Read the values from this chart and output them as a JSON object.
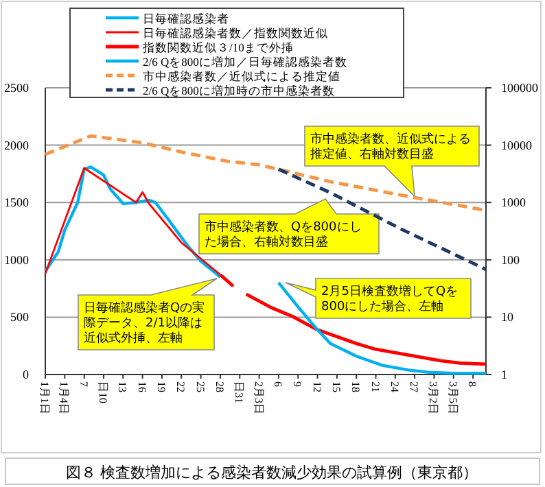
{
  "chart_data": {
    "type": "line",
    "title": "図８ 検査数増加による感染者数減少効果の試算例（東京都）",
    "annotations": [
      "市中感染者数、近似式による推定値、右軸対数目盛",
      "市中感染者数、Qを800にした場合、右軸対数目盛",
      "2月5日検査数増してQを800にした場合、左軸",
      "日毎確認感染者Qの実際データ、2/1以降は近似式外挿、左軸"
    ],
    "xlim": [
      "--01-01",
      "--03-10"
    ],
    "xticks": [
      {
        "value": "--01-01",
        "label": "1月1日"
      },
      {
        "value": "--01-04",
        "label": "1月4日"
      },
      {
        "value": "--01-07",
        "label": "7"
      },
      {
        "value": "--01-10",
        "label": "日10"
      },
      {
        "value": "--01-13",
        "label": "13"
      },
      {
        "value": "--01-16",
        "label": "16"
      },
      {
        "value": "--01-19",
        "label": "19"
      },
      {
        "value": "--01-22",
        "label": "22"
      },
      {
        "value": "--01-25",
        "label": "25"
      },
      {
        "value": "--01-28",
        "label": "28"
      },
      {
        "value": "--01-31",
        "label": "日31"
      },
      {
        "value": "--02-03",
        "label": "2月3日"
      },
      {
        "value": "--02-06",
        "label": "6"
      },
      {
        "value": "--02-09",
        "label": "9"
      },
      {
        "value": "--02-12",
        "label": "12"
      },
      {
        "value": "--02-15",
        "label": "15"
      },
      {
        "value": "--02-18",
        "label": "18"
      },
      {
        "value": "--02-21",
        "label": "21"
      },
      {
        "value": "--02-24",
        "label": "24"
      },
      {
        "value": "--02-27",
        "label": "27"
      },
      {
        "value": "--03-02",
        "label": "3月2日"
      },
      {
        "value": "--03-05",
        "label": "3月5日"
      },
      {
        "value": "--03-08",
        "label": "8"
      }
    ],
    "ylim": [
      0,
      2500
    ],
    "yticks": [
      0,
      500,
      1000,
      1500,
      2000,
      2500
    ],
    "y2lim": [
      1,
      100000
    ],
    "y2ticks": [
      1,
      10,
      100,
      1000,
      10000,
      100000
    ],
    "log": "y2",
    "grid": "y",
    "legend": "top",
    "series": [
      {
        "name": "日毎確認感染者",
        "color": "#00b0f0",
        "x": [
          "--01-01",
          "--01-03",
          "--01-04",
          "--01-06",
          "--01-07",
          "--01-08",
          "--01-10",
          "--01-11",
          "--01-13",
          "--01-15",
          "--01-17",
          "--01-18",
          "--01-20",
          "--01-23",
          "--01-25",
          "--01-28"
        ],
        "values": [
          900,
          1070,
          1260,
          1500,
          1790,
          1810,
          1740,
          1620,
          1490,
          1500,
          1520,
          1500,
          1350,
          1120,
          990,
          850
        ]
      },
      {
        "name": "日毎確認感染者数／指数関数近似",
        "color": "#ff0000",
        "x": [
          "--01-01",
          "--01-07",
          "--01-15",
          "--01-16",
          "--01-17",
          "--01-22",
          "--01-28"
        ],
        "values": [
          880,
          1800,
          1500,
          1590,
          1490,
          1150,
          870
        ]
      },
      {
        "name": "指数関数近似３/10まで外挿",
        "color": "#ff0000",
        "x": [
          "--01-28",
          "--01-30",
          "--01-31",
          "--02-01",
          "--02-05",
          "--02-08",
          "--02-12",
          "--02-15",
          "--02-18",
          "--02-21",
          "--02-25",
          "--02-28",
          "--03-03",
          "--03-06",
          "--03-10"
        ],
        "values": [
          870,
          770,
          null,
          700,
          580,
          510,
          390,
          330,
          270,
          220,
          180,
          150,
          120,
          100,
          90
        ]
      },
      {
        "name": "2/6 Qを800に増加／日毎確認感染者数",
        "color": "#00b0f0",
        "x": [
          "--02-06",
          "--02-09",
          "--02-12",
          "--02-14",
          "--02-18",
          "--02-22",
          "--02-26",
          "--03-01",
          "--03-05",
          "--03-10"
        ],
        "values": [
          800,
          590,
          390,
          270,
          160,
          80,
          40,
          20,
          10,
          10
        ]
      },
      {
        "name": "市中感染者数／近似式による推定値",
        "color": "#f79646",
        "line_style": "dashed",
        "axis": "y2",
        "x": [
          "--01-01",
          "--01-08",
          "--01-16",
          "--01-22",
          "--01-29",
          "--02-03",
          "--02-14",
          "--02-25",
          "--03-10"
        ],
        "values": [
          6900,
          14500,
          11000,
          7600,
          5250,
          4550,
          2300,
          1340,
          730
        ]
      },
      {
        "name": "2/6 Qを800に増加時の市中感染者数",
        "color": "#1f3864",
        "line_style": "dashed",
        "axis": "y2",
        "x": [
          "--02-06",
          "--02-14",
          "--02-25",
          "--03-10"
        ],
        "values": [
          3800,
          1480,
          340,
          68
        ]
      }
    ]
  }
}
